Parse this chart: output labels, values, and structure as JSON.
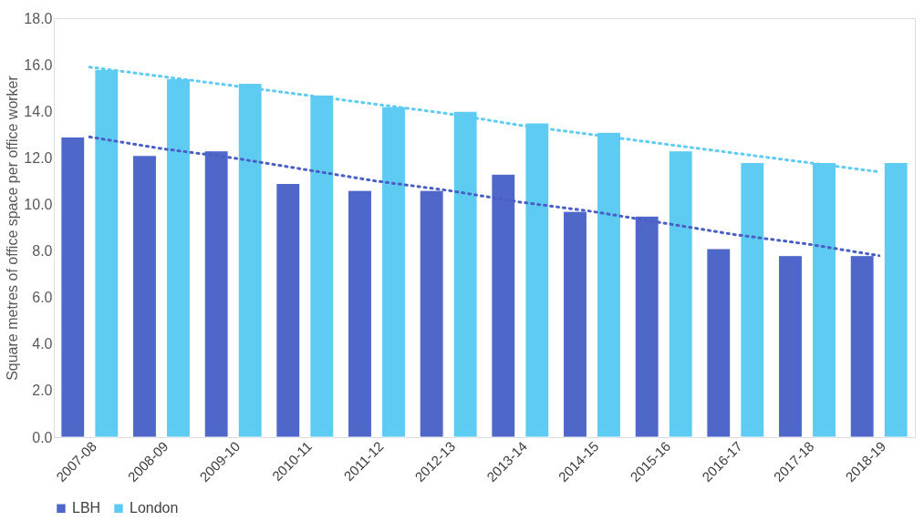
{
  "chart_data": {
    "type": "bar",
    "ylabel": "Square metres of office space per office worker",
    "categories": [
      "2007-08",
      "2008-09",
      "2009-10",
      "2010-11",
      "2011-12",
      "2012-13",
      "2013-14",
      "2014-15",
      "2015-16",
      "2016-17",
      "2017-18",
      "2018-19"
    ],
    "series": [
      {
        "name": "LBH",
        "color": "#4f67c8",
        "values": [
          12.9,
          12.1,
          12.3,
          10.9,
          10.6,
          10.6,
          11.3,
          9.7,
          9.5,
          8.1,
          7.8,
          7.8
        ]
      },
      {
        "name": "London",
        "color": "#5ecbf2",
        "values": [
          15.8,
          15.4,
          15.2,
          14.7,
          14.2,
          14.0,
          13.5,
          13.1,
          12.3,
          11.8,
          11.8,
          11.8
        ]
      },
      {
        "type": "line",
        "color": "#4a5fc4",
        "line_style": "dotted",
        "values": [
          12.9,
          12.4,
          12.0,
          11.5,
          11.0,
          10.6,
          10.1,
          9.7,
          9.2,
          8.7,
          8.3,
          7.8
        ]
      },
      {
        "type": "line",
        "color": "#5ecbf2",
        "line_style": "dotted",
        "values": [
          15.9,
          15.5,
          15.1,
          14.7,
          14.3,
          13.9,
          13.4,
          13.0,
          12.6,
          12.2,
          11.8,
          11.4
        ]
      }
    ],
    "ylim": [
      0,
      18
    ],
    "yticks": [
      {
        "value": 0,
        "label": "0.0"
      },
      {
        "value": 2,
        "label": "2.0"
      },
      {
        "value": 4,
        "label": "4.0"
      },
      {
        "value": 6,
        "label": "6.0"
      },
      {
        "value": 8,
        "label": "8.0"
      },
      {
        "value": 10,
        "label": "10.0"
      },
      {
        "value": 12,
        "label": "12.0"
      },
      {
        "value": 14,
        "label": "14.0"
      },
      {
        "value": 16,
        "label": "16.0"
      },
      {
        "value": 18,
        "label": "18.0"
      }
    ],
    "grid": false,
    "legend": "bottom"
  }
}
